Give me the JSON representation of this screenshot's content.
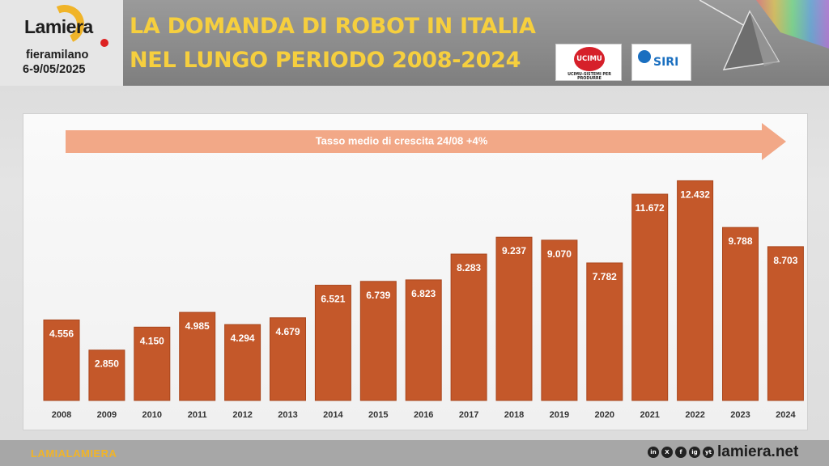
{
  "header": {
    "logo_word": "Lamiera",
    "logo_sub": "fieramilano",
    "logo_date": "6-9/05/2025",
    "title": "LA DOMANDA DI ROBOT IN ITALIA NEL LUNGO PERIODO 2008-2024",
    "ucimu_label": "UCIMU",
    "ucimu_tagline": "UCIMU-SISTEMI PER PRODURRE",
    "siri_label": "SIRI"
  },
  "colors": {
    "bar": "#c4582a",
    "bar_dark": "#a9461d",
    "arrow": "#f2a887",
    "title": "#f6cf3e"
  },
  "chart_data": {
    "type": "bar",
    "title": "LA DOMANDA DI ROBOT IN ITALIA NEL LUNGO PERIODO 2008-2024",
    "categories": [
      "2008",
      "2009",
      "2010",
      "2011",
      "2012",
      "2013",
      "2014",
      "2015",
      "2016",
      "2017",
      "2018",
      "2019",
      "2020",
      "2021",
      "2022",
      "2023",
      "2024"
    ],
    "values": [
      4556,
      2850,
      4150,
      4985,
      4294,
      4679,
      6521,
      6739,
      6823,
      8283,
      9237,
      9070,
      7782,
      11672,
      12432,
      9788,
      8703
    ],
    "labels": [
      "4.556",
      "2.850",
      "4.150",
      "4.985",
      "4.294",
      "4.679",
      "6.521",
      "6.739",
      "6.823",
      "8.283",
      "9.237",
      "9.070",
      "7.782",
      "11.672",
      "12.432",
      "9.788",
      "8.703"
    ],
    "annotation": "Tasso medio di crescita 24/08  +4%",
    "xlabel": "",
    "ylabel": "",
    "ylim": [
      0,
      13000
    ],
    "grid": false,
    "legend": "none"
  },
  "footer": {
    "brand": "LAMIALAMIERA",
    "site": "lamiera.net",
    "social": [
      "in",
      "X",
      "f",
      "ig",
      "yt"
    ]
  }
}
